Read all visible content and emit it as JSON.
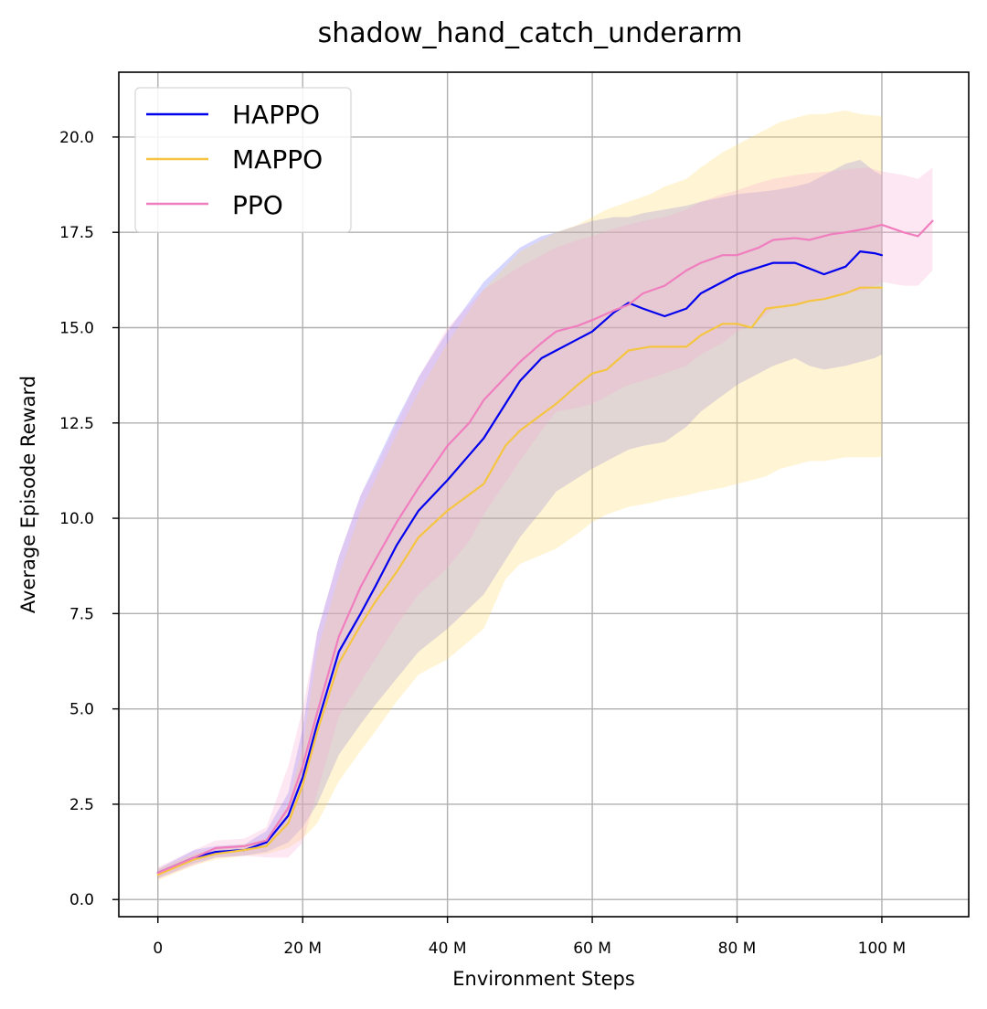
{
  "chart_data": {
    "type": "line",
    "title": "shadow_hand_catch_underarm",
    "xlabel": "Environment Steps",
    "ylabel": "Average Episode Reward",
    "xlim": [
      -5.4,
      112
    ],
    "ylim": [
      -0.45,
      21.7
    ],
    "grid": true,
    "legend_position": "top-left",
    "x_ticks": [
      {
        "value": 0,
        "label": "0"
      },
      {
        "value": 20,
        "label": "20 M"
      },
      {
        "value": 40,
        "label": "40 M"
      },
      {
        "value": 60,
        "label": "60 M"
      },
      {
        "value": 80,
        "label": "80 M"
      },
      {
        "value": 100,
        "label": "100 M"
      }
    ],
    "y_ticks": [
      {
        "value": 0,
        "label": "0.0"
      },
      {
        "value": 2.5,
        "label": "2.5"
      },
      {
        "value": 5,
        "label": "5.0"
      },
      {
        "value": 7.5,
        "label": "7.5"
      },
      {
        "value": 10,
        "label": "10.0"
      },
      {
        "value": 12.5,
        "label": "12.5"
      },
      {
        "value": 15,
        "label": "15.0"
      },
      {
        "value": 17.5,
        "label": "17.5"
      },
      {
        "value": 20,
        "label": "20.0"
      }
    ],
    "series": [
      {
        "name": "HAPPO",
        "color": "#0000ee",
        "band_color": "#6b6bff",
        "x": [
          0,
          5,
          8,
          12,
          15,
          18,
          20,
          22,
          25,
          28,
          30,
          33,
          36,
          40,
          45,
          50,
          53,
          55,
          60,
          63,
          65,
          67,
          70,
          73,
          75,
          80,
          85,
          88,
          90,
          92,
          95,
          97,
          99,
          100
        ],
        "y": [
          0.7,
          1.1,
          1.25,
          1.3,
          1.5,
          2.2,
          3.2,
          4.6,
          6.5,
          7.5,
          8.2,
          9.3,
          10.2,
          11.0,
          12.1,
          13.6,
          14.2,
          14.4,
          14.9,
          15.4,
          15.65,
          15.5,
          15.3,
          15.5,
          15.9,
          16.4,
          16.7,
          16.7,
          16.55,
          16.4,
          16.6,
          17.0,
          16.95,
          16.9
        ],
        "upper": [
          0.8,
          1.3,
          1.4,
          1.45,
          1.8,
          2.8,
          4.5,
          7.0,
          9.0,
          10.6,
          11.4,
          12.6,
          13.7,
          14.9,
          16.2,
          17.1,
          17.4,
          17.5,
          17.8,
          17.9,
          17.9,
          18.0,
          18.1,
          18.2,
          18.3,
          18.5,
          18.6,
          18.7,
          18.8,
          19.0,
          19.3,
          19.4,
          19.1,
          19.0
        ],
        "lower": [
          0.55,
          0.95,
          1.1,
          1.15,
          1.25,
          1.5,
          1.9,
          2.5,
          3.8,
          4.6,
          5.1,
          5.8,
          6.5,
          7.1,
          8.0,
          9.5,
          10.2,
          10.7,
          11.3,
          11.6,
          11.8,
          11.9,
          12.0,
          12.4,
          12.8,
          13.5,
          14.0,
          14.2,
          14.0,
          13.9,
          14.0,
          14.1,
          14.2,
          14.3
        ]
      },
      {
        "name": "MAPPO",
        "color": "#f5c542",
        "band_color": "#ffd966",
        "x": [
          0,
          5,
          8,
          12,
          15,
          18,
          20,
          22,
          25,
          28,
          30,
          33,
          36,
          40,
          45,
          48,
          50,
          55,
          58,
          60,
          62,
          65,
          68,
          70,
          73,
          75,
          78,
          80,
          82,
          84,
          86,
          88,
          90,
          92,
          95,
          97,
          100
        ],
        "y": [
          0.65,
          1.05,
          1.2,
          1.3,
          1.4,
          2.0,
          3.0,
          4.4,
          6.2,
          7.2,
          7.8,
          8.6,
          9.5,
          10.2,
          10.9,
          11.9,
          12.3,
          13.0,
          13.5,
          13.8,
          13.9,
          14.4,
          14.5,
          14.5,
          14.5,
          14.8,
          15.1,
          15.1,
          15.0,
          15.5,
          15.55,
          15.6,
          15.7,
          15.75,
          15.9,
          16.05,
          16.05
        ],
        "upper": [
          0.8,
          1.2,
          1.35,
          1.45,
          1.6,
          2.5,
          4.0,
          6.5,
          8.5,
          10.2,
          11.0,
          12.2,
          13.3,
          14.6,
          16.0,
          16.6,
          17.0,
          17.5,
          17.7,
          17.9,
          18.1,
          18.3,
          18.5,
          18.7,
          18.9,
          19.2,
          19.6,
          19.8,
          20.0,
          20.2,
          20.4,
          20.5,
          20.6,
          20.6,
          20.7,
          20.6,
          20.55
        ],
        "lower": [
          0.5,
          0.9,
          1.05,
          1.15,
          1.2,
          1.35,
          1.6,
          2.0,
          3.1,
          3.9,
          4.4,
          5.2,
          5.9,
          6.3,
          7.1,
          8.4,
          8.8,
          9.2,
          9.6,
          9.9,
          10.1,
          10.3,
          10.4,
          10.5,
          10.6,
          10.7,
          10.8,
          10.9,
          11.0,
          11.1,
          11.3,
          11.4,
          11.5,
          11.5,
          11.6,
          11.6,
          11.6
        ]
      },
      {
        "name": "PPO",
        "color": "#f07ebf",
        "band_color": "#f7a8cf",
        "x": [
          0,
          5,
          8,
          12,
          15,
          18,
          20,
          22,
          25,
          28,
          30,
          33,
          36,
          40,
          43,
          45,
          50,
          53,
          55,
          58,
          60,
          63,
          65,
          67,
          70,
          73,
          75,
          78,
          80,
          83,
          85,
          88,
          90,
          93,
          95,
          98,
          100,
          103,
          105,
          107
        ],
        "y": [
          0.7,
          1.1,
          1.35,
          1.4,
          1.55,
          2.4,
          3.5,
          4.9,
          6.9,
          8.2,
          8.9,
          9.9,
          10.8,
          11.9,
          12.5,
          13.1,
          14.1,
          14.6,
          14.9,
          15.05,
          15.2,
          15.45,
          15.6,
          15.9,
          16.1,
          16.5,
          16.7,
          16.9,
          16.9,
          17.1,
          17.3,
          17.35,
          17.3,
          17.45,
          17.5,
          17.6,
          17.7,
          17.5,
          17.4,
          17.8
        ],
        "upper": [
          0.85,
          1.3,
          1.55,
          1.6,
          1.9,
          3.5,
          5.0,
          7.0,
          9.0,
          10.6,
          11.3,
          12.5,
          13.7,
          15.0,
          15.6,
          16.0,
          16.6,
          16.9,
          17.1,
          17.3,
          17.4,
          17.6,
          17.7,
          17.8,
          17.9,
          18.1,
          18.3,
          18.5,
          18.6,
          18.8,
          18.9,
          19.0,
          19.05,
          19.1,
          19.15,
          19.2,
          19.1,
          19.0,
          18.9,
          19.2
        ],
        "lower": [
          0.55,
          0.9,
          1.1,
          1.15,
          1.1,
          1.1,
          1.5,
          2.8,
          4.8,
          5.7,
          6.3,
          7.2,
          8.0,
          8.7,
          9.4,
          10.1,
          11.5,
          12.3,
          12.8,
          12.9,
          13.0,
          13.3,
          13.5,
          13.6,
          13.8,
          14.0,
          14.3,
          14.6,
          14.9,
          15.2,
          15.5,
          15.6,
          15.7,
          15.8,
          15.9,
          16.0,
          16.2,
          16.1,
          16.1,
          16.5
        ]
      }
    ]
  }
}
